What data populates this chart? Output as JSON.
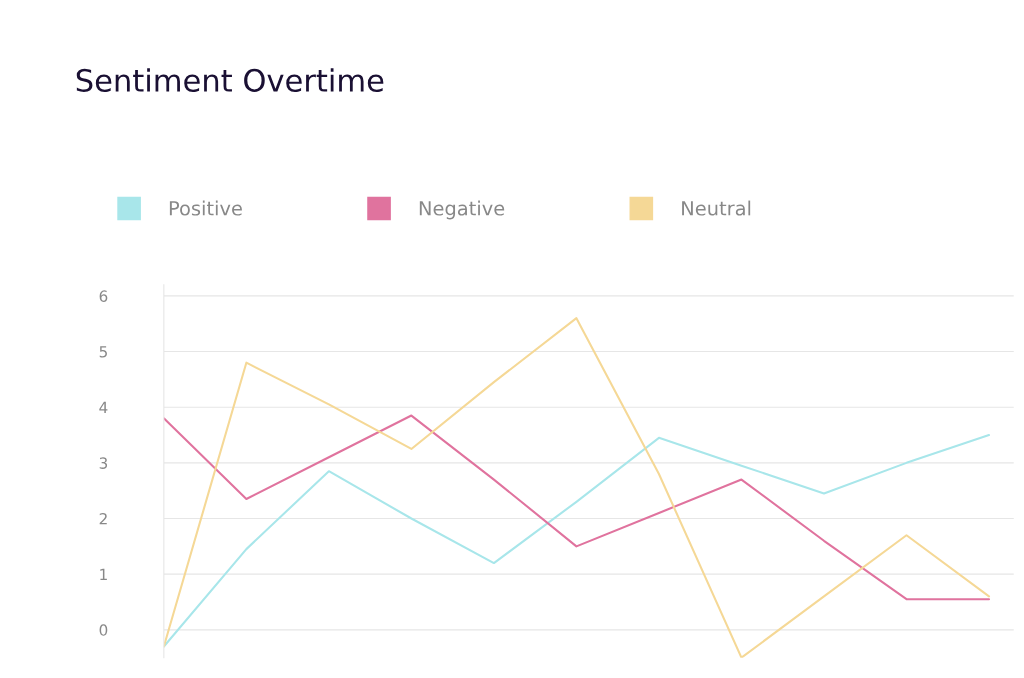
{
  "chart_data": {
    "type": "line",
    "title": "Sentiment Overtime",
    "categories": [
      null,
      null,
      null,
      null,
      null,
      null,
      null,
      null,
      null,
      null,
      null
    ],
    "series": [
      {
        "name": "Positive",
        "color": "#a8e6ea",
        "values": [
          -0.3,
          1.45,
          2.85,
          2.0,
          1.2,
          2.3,
          3.45,
          2.95,
          2.45,
          3.0,
          3.5
        ]
      },
      {
        "name": "Negative",
        "color": "#e0739e",
        "values": [
          3.8,
          2.35,
          3.1,
          3.85,
          2.7,
          1.5,
          2.1,
          2.7,
          1.6,
          0.55,
          0.55
        ]
      },
      {
        "name": "Neutral",
        "color": "#f5d896",
        "values": [
          -0.3,
          4.8,
          4.05,
          3.25,
          4.45,
          5.6,
          2.8,
          -0.5,
          0.6,
          1.7,
          0.6
        ]
      }
    ],
    "ylim": [
      -0.5,
      6.2
    ],
    "yticks": [
      0,
      1,
      2,
      3,
      4,
      5,
      6
    ],
    "grid": "y",
    "legend": "top left",
    "marker": "none",
    "line_style": "solid"
  }
}
